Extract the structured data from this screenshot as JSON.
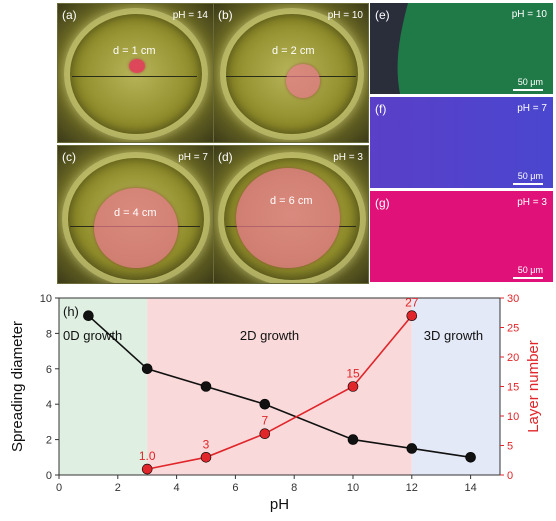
{
  "photos": [
    {
      "label": "(a)",
      "ph": "pH = 14",
      "d": "d = 1 cm"
    },
    {
      "label": "(b)",
      "ph": "pH = 10",
      "d": "d = 2 cm"
    },
    {
      "label": "(c)",
      "ph": "pH = 7",
      "d": "d = 4 cm"
    },
    {
      "label": "(d)",
      "ph": "pH = 3",
      "d": "d = 6 cm"
    }
  ],
  "micrographs": [
    {
      "label": "(e)",
      "ph": "pH = 10",
      "scale": "50 μm",
      "color": "#1f7a47"
    },
    {
      "label": "(f)",
      "ph": "pH = 7",
      "scale": "50 μm",
      "color": "#5a3fc8"
    },
    {
      "label": "(g)",
      "ph": "pH = 3",
      "scale": "50 μm",
      "color": "#e0127a"
    }
  ],
  "chart_data": {
    "type": "line",
    "panel_label": "(h)",
    "xlabel": "pH",
    "ylabel_left": "Spreading diameter",
    "ylabel_right": "Layer number",
    "xlim": [
      0,
      15
    ],
    "ylim_left": [
      0,
      10
    ],
    "ylim_right": [
      0,
      30
    ],
    "x_ticks": [
      0,
      2,
      4,
      6,
      8,
      10,
      12,
      14
    ],
    "y_ticks_left": [
      0,
      2,
      4,
      6,
      8,
      10
    ],
    "y_ticks_right": [
      0,
      5,
      10,
      15,
      20,
      25,
      30
    ],
    "regions": [
      {
        "label": "0D growth",
        "from": 0,
        "to": 3,
        "color": "#dff0e2"
      },
      {
        "label": "2D growth",
        "from": 3,
        "to": 12,
        "color": "#f9d9d9"
      },
      {
        "label": "3D growth",
        "from": 12,
        "to": 15,
        "color": "#e3e9f7"
      }
    ],
    "series": [
      {
        "axis": "left",
        "color": "#111111",
        "x": [
          1,
          3,
          5,
          7,
          10,
          12,
          14
        ],
        "y": [
          9,
          6,
          5,
          4,
          2,
          1.5,
          1
        ]
      },
      {
        "axis": "right",
        "color": "#e0262b",
        "x": [
          3,
          5,
          7,
          10,
          12
        ],
        "y": [
          1,
          3,
          7,
          15,
          27
        ],
        "labels": [
          "1.0",
          "3",
          "7",
          "15",
          "27"
        ]
      }
    ]
  }
}
